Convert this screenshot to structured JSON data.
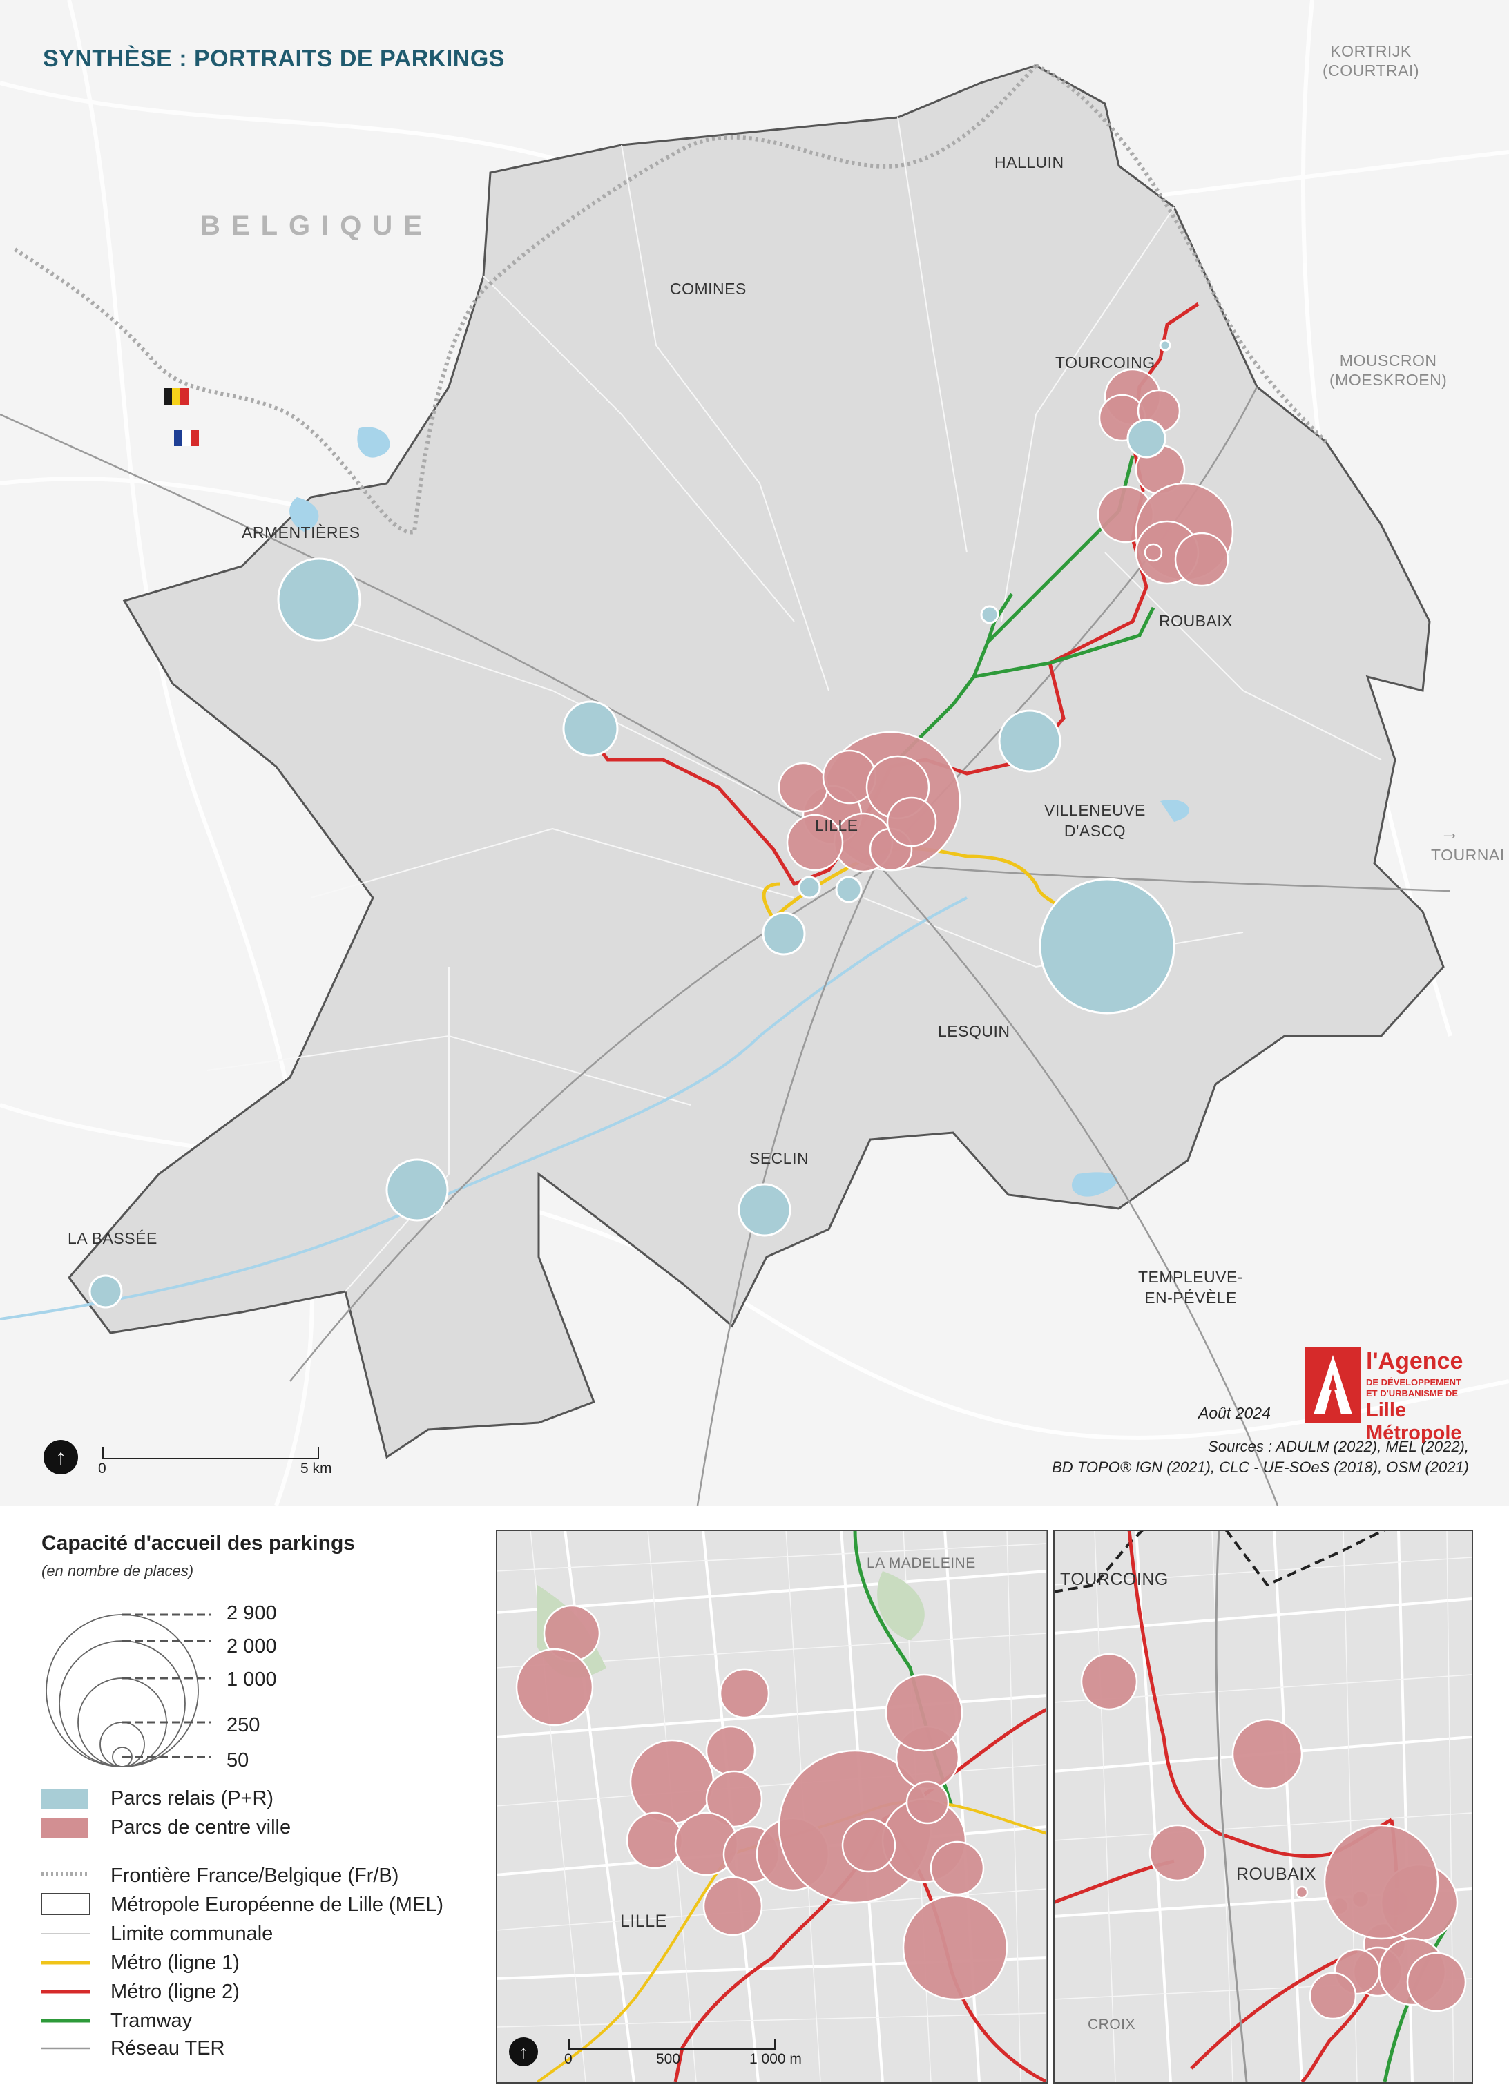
{
  "title": "SYNTHÈSE : PORTRAITS DE PARKINGS",
  "countries": {
    "belgium": "BELGIQUE"
  },
  "cities": {
    "halluin": "HALLUIN",
    "comines": "COMINES",
    "tourcoing": "TOURCOING",
    "roubaix": "ROUBAIX",
    "armentieres": "ARMENTIÈRES",
    "lille": "LILLE",
    "villeneuve": "VILLENEUVE\nD'ASCQ",
    "lesquin": "LESQUIN",
    "seclin": "SECLIN",
    "la_bassee": "LA BASSÉE",
    "templeuve": "TEMPLEUVE-\nEN-PÉVÈLE",
    "kortrijk": "KORTRIJK\n(COURTRAI)",
    "mouscron": "MOUSCRON\n(MOESKROEN)",
    "tournai": "TOURNAI"
  },
  "insets": {
    "lille": {
      "la_madeleine": "LA MADELEINE",
      "lille": "LILLE",
      "scale_ticks": [
        "0",
        "500",
        "1 000 m"
      ]
    },
    "roubaix": {
      "tourcoing": "TOURCOING",
      "roubaix": "ROUBAIX",
      "croix": "CROIX"
    }
  },
  "scale_bar": {
    "ticks": [
      "0",
      "5 km"
    ]
  },
  "credits": {
    "date": "Août 2024",
    "sources_line1": "Sources : ADULM (2022), MEL (2022),",
    "sources_line2": "BD TOPO® IGN (2021), CLC - UE-SOeS (2018), OSM (2021)"
  },
  "logo": {
    "line1": "l'Agence",
    "line2": "DE DÉVELOPPEMENT",
    "line3": "ET D'URBANISME DE",
    "line4": "Lille Métropole"
  },
  "legend": {
    "title": "Capacité d'accueil des parkings",
    "subtitle": "(en nombre de places)",
    "sizes": [
      "2 900",
      "2 000",
      "1 000",
      "250",
      "50"
    ],
    "categories": [
      {
        "label": "Parcs relais (P+R)",
        "color": "#a8cdd6"
      },
      {
        "label": "Parcs de centre ville",
        "color": "#d28f92"
      }
    ],
    "lines": [
      {
        "label": "Frontière France/Belgique (Fr/B)",
        "style": "dotted-grey"
      },
      {
        "label": "Métropole Européenne de Lille (MEL)",
        "style": "box"
      },
      {
        "label": "Limite communale",
        "style": "thin-white"
      },
      {
        "label": "Métro (ligne 1)",
        "color": "#f0c419"
      },
      {
        "label": "Métro (ligne 2)",
        "color": "#d62a2a"
      },
      {
        "label": "Tramway",
        "color": "#2e9a3a"
      },
      {
        "label": "Réseau TER",
        "color": "#999999"
      }
    ]
  },
  "colors": {
    "park_relay": "#a8cdd6",
    "park_center": "#d28f92",
    "metro1": "#f0c419",
    "metro2": "#d62a2a",
    "tram": "#2e9a3a",
    "title": "#1f5a6e"
  }
}
